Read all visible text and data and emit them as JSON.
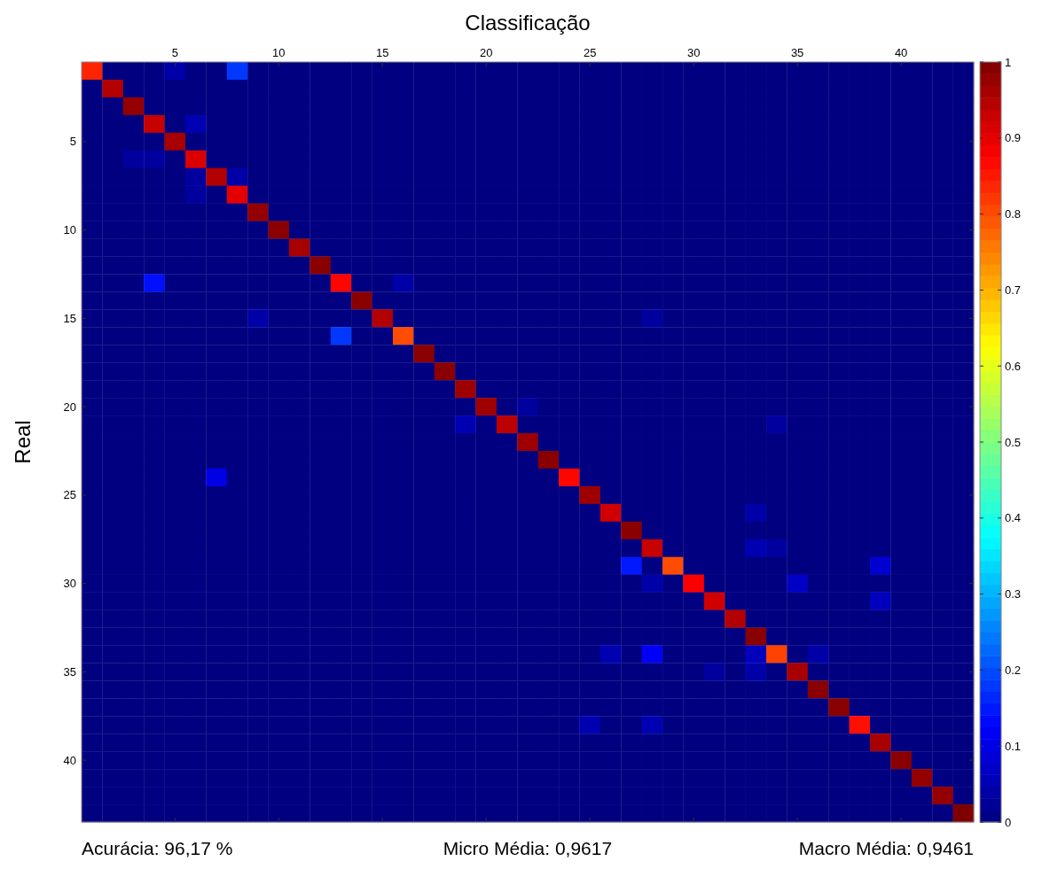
{
  "chart_data": {
    "type": "heatmap",
    "xlabel": "Classificação",
    "ylabel": "Real",
    "categories": [
      null,
      null,
      null,
      null,
      "5",
      null,
      null,
      null,
      null,
      "10",
      null,
      null,
      null,
      null,
      "15",
      null,
      null,
      null,
      null,
      "20",
      null,
      null,
      null,
      null,
      "25",
      null,
      null,
      null,
      null,
      "30",
      null,
      null,
      null,
      null,
      "35",
      null,
      null,
      null,
      null,
      "40",
      null,
      null,
      null
    ],
    "y_categories": [
      null,
      null,
      null,
      null,
      "5",
      null,
      null,
      null,
      null,
      "10",
      null,
      null,
      null,
      null,
      "15",
      null,
      null,
      null,
      null,
      "20",
      null,
      null,
      null,
      null,
      "25",
      null,
      null,
      null,
      null,
      "30",
      null,
      null,
      null,
      null,
      "35",
      null,
      null,
      null,
      null,
      "40",
      null,
      null,
      null
    ],
    "clim": [
      0,
      1
    ],
    "cticks": [
      0,
      0.1,
      0.2,
      0.3,
      0.4,
      0.5,
      0.6,
      0.7,
      0.8,
      0.9,
      1
    ],
    "annotations": [
      "Acurácia: 96,17 %",
      "Micro Média: 0,9617",
      "Macro Média: 0,9461"
    ],
    "cells": [
      [
        0.84,
        0,
        0,
        0,
        0.04,
        0,
        0,
        0.18,
        0,
        0,
        0,
        0,
        0,
        0,
        0,
        0,
        0,
        0,
        0,
        0,
        0,
        0,
        0,
        0,
        0,
        0,
        0,
        0,
        0,
        0,
        0,
        0,
        0,
        0,
        0,
        0,
        0,
        0,
        0,
        0,
        0,
        0,
        0
      ],
      [
        0,
        0.95,
        0,
        0,
        0,
        0,
        0,
        0,
        0,
        0,
        0,
        0,
        0,
        0,
        0,
        0,
        0,
        0,
        0,
        0,
        0,
        0,
        0,
        0,
        0,
        0,
        0,
        0,
        0,
        0,
        0,
        0,
        0,
        0,
        0,
        0,
        0,
        0,
        0,
        0,
        0,
        0,
        0
      ],
      [
        0,
        0,
        0.98,
        0,
        0,
        0,
        0,
        0,
        0,
        0,
        0,
        0,
        0,
        0,
        0,
        0,
        0,
        0,
        0,
        0,
        0,
        0,
        0,
        0,
        0,
        0,
        0,
        0,
        0,
        0,
        0,
        0,
        0,
        0,
        0,
        0,
        0,
        0,
        0,
        0,
        0,
        0,
        0
      ],
      [
        0,
        0,
        0,
        0.93,
        0,
        0.05,
        0,
        0,
        0,
        0,
        0,
        0,
        0,
        0,
        0,
        0,
        0,
        0,
        0,
        0,
        0,
        0,
        0,
        0,
        0,
        0,
        0,
        0,
        0,
        0,
        0,
        0,
        0,
        0,
        0,
        0,
        0,
        0,
        0,
        0,
        0,
        0,
        0
      ],
      [
        0,
        0,
        0,
        0,
        0.96,
        0,
        0,
        0,
        0,
        0,
        0,
        0,
        0,
        0,
        0,
        0,
        0,
        0,
        0,
        0,
        0,
        0,
        0,
        0,
        0,
        0,
        0,
        0,
        0,
        0,
        0,
        0,
        0,
        0,
        0,
        0,
        0,
        0,
        0,
        0,
        0,
        0,
        0
      ],
      [
        0,
        0,
        0.03,
        0.03,
        0,
        0.91,
        0,
        0,
        0,
        0,
        0,
        0,
        0,
        0,
        0,
        0,
        0,
        0,
        0,
        0,
        0,
        0,
        0,
        0,
        0,
        0,
        0,
        0,
        0,
        0,
        0,
        0,
        0,
        0,
        0,
        0,
        0,
        0,
        0,
        0,
        0,
        0,
        0
      ],
      [
        0,
        0,
        0,
        0,
        0,
        0.03,
        0.95,
        0.04,
        0,
        0,
        0,
        0,
        0,
        0,
        0,
        0,
        0,
        0,
        0,
        0,
        0,
        0,
        0,
        0,
        0,
        0,
        0,
        0,
        0,
        0,
        0,
        0,
        0,
        0,
        0,
        0,
        0,
        0,
        0,
        0,
        0,
        0,
        0
      ],
      [
        0,
        0,
        0,
        0,
        0,
        0.03,
        0,
        0.9,
        0,
        0,
        0,
        0,
        0,
        0,
        0,
        0,
        0,
        0,
        0,
        0,
        0,
        0,
        0,
        0,
        0,
        0,
        0,
        0,
        0,
        0,
        0,
        0,
        0,
        0,
        0,
        0,
        0,
        0,
        0,
        0,
        0,
        0,
        0
      ],
      [
        0,
        0,
        0,
        0,
        0,
        0,
        0,
        0,
        0.98,
        0,
        0,
        0,
        0,
        0,
        0,
        0,
        0,
        0,
        0,
        0,
        0,
        0,
        0,
        0,
        0,
        0,
        0,
        0,
        0,
        0,
        0,
        0,
        0,
        0,
        0,
        0,
        0,
        0,
        0,
        0,
        0,
        0,
        0
      ],
      [
        0,
        0,
        0,
        0,
        0,
        0,
        0,
        0,
        0,
        0.99,
        0,
        0,
        0,
        0,
        0,
        0,
        0,
        0,
        0,
        0,
        0,
        0,
        0,
        0,
        0,
        0,
        0,
        0,
        0,
        0,
        0,
        0,
        0,
        0,
        0,
        0,
        0,
        0,
        0,
        0,
        0,
        0,
        0
      ],
      [
        0,
        0,
        0,
        0,
        0,
        0,
        0,
        0,
        0,
        0,
        0.96,
        0,
        0,
        0,
        0,
        0,
        0,
        0,
        0,
        0,
        0,
        0,
        0,
        0,
        0,
        0,
        0,
        0,
        0,
        0,
        0,
        0,
        0,
        0,
        0,
        0,
        0,
        0,
        0,
        0,
        0,
        0,
        0
      ],
      [
        0,
        0,
        0,
        0,
        0,
        0,
        0,
        0,
        0,
        0,
        0,
        0.99,
        0,
        0,
        0,
        0,
        0,
        0,
        0,
        0,
        0,
        0,
        0,
        0,
        0,
        0,
        0,
        0,
        0,
        0,
        0,
        0,
        0,
        0,
        0,
        0,
        0,
        0,
        0,
        0,
        0,
        0,
        0
      ],
      [
        0,
        0,
        0,
        0.14,
        0,
        0,
        0,
        0,
        0,
        0,
        0,
        0,
        0.87,
        0,
        0,
        0.04,
        0,
        0,
        0,
        0,
        0,
        0,
        0,
        0,
        0,
        0,
        0,
        0,
        0,
        0,
        0,
        0,
        0,
        0,
        0,
        0,
        0,
        0,
        0,
        0,
        0,
        0,
        0
      ],
      [
        0,
        0,
        0,
        0,
        0,
        0,
        0,
        0,
        0,
        0,
        0,
        0,
        0,
        0.99,
        0,
        0,
        0,
        0,
        0,
        0,
        0,
        0,
        0,
        0,
        0,
        0,
        0,
        0,
        0,
        0,
        0,
        0,
        0,
        0,
        0,
        0,
        0,
        0,
        0,
        0,
        0,
        0,
        0
      ],
      [
        0,
        0,
        0,
        0,
        0,
        0,
        0,
        0,
        0.04,
        0,
        0,
        0,
        0,
        0,
        0.95,
        0,
        0,
        0,
        0,
        0,
        0,
        0,
        0,
        0,
        0,
        0,
        0,
        0.03,
        0,
        0,
        0,
        0,
        0,
        0,
        0,
        0,
        0,
        0,
        0,
        0,
        0,
        0,
        0
      ],
      [
        0,
        0,
        0,
        0,
        0,
        0,
        0,
        0,
        0,
        0,
        0,
        0,
        0.18,
        0,
        0,
        0.8,
        0,
        0,
        0,
        0,
        0,
        0,
        0,
        0,
        0,
        0,
        0,
        0,
        0,
        0,
        0,
        0,
        0,
        0,
        0,
        0,
        0,
        0,
        0,
        0,
        0,
        0,
        0
      ],
      [
        0,
        0,
        0,
        0,
        0,
        0,
        0,
        0,
        0,
        0,
        0,
        0,
        0,
        0,
        0,
        0,
        0.99,
        0,
        0,
        0,
        0,
        0,
        0,
        0,
        0,
        0,
        0,
        0,
        0,
        0,
        0,
        0,
        0,
        0,
        0,
        0,
        0,
        0,
        0,
        0,
        0,
        0,
        0
      ],
      [
        0,
        0,
        0,
        0,
        0,
        0,
        0,
        0,
        0,
        0,
        0,
        0,
        0,
        0,
        0,
        0,
        0,
        0.99,
        0,
        0,
        0,
        0,
        0,
        0,
        0,
        0,
        0,
        0,
        0,
        0,
        0,
        0,
        0,
        0,
        0,
        0,
        0,
        0,
        0,
        0,
        0,
        0,
        0
      ],
      [
        0,
        0,
        0,
        0,
        0,
        0,
        0,
        0,
        0,
        0,
        0,
        0,
        0,
        0,
        0,
        0,
        0,
        0,
        0.97,
        0,
        0,
        0,
        0,
        0,
        0,
        0,
        0,
        0,
        0,
        0,
        0,
        0,
        0,
        0,
        0,
        0,
        0,
        0,
        0,
        0,
        0,
        0,
        0
      ],
      [
        0,
        0,
        0,
        0,
        0,
        0,
        0,
        0,
        0,
        0,
        0,
        0,
        0,
        0,
        0,
        0,
        0,
        0,
        0,
        0.97,
        0,
        0.03,
        0,
        0,
        0,
        0,
        0,
        0,
        0,
        0,
        0,
        0,
        0,
        0,
        0,
        0,
        0,
        0,
        0,
        0,
        0,
        0,
        0
      ],
      [
        0,
        0,
        0,
        0,
        0,
        0,
        0,
        0,
        0,
        0,
        0,
        0,
        0,
        0,
        0,
        0,
        0,
        0,
        0.05,
        0,
        0.94,
        0,
        0,
        0,
        0,
        0,
        0,
        0,
        0,
        0,
        0,
        0,
        0,
        0.03,
        0,
        0,
        0,
        0,
        0,
        0,
        0,
        0,
        0
      ],
      [
        0,
        0,
        0,
        0,
        0,
        0,
        0,
        0,
        0,
        0,
        0,
        0,
        0,
        0,
        0,
        0,
        0,
        0,
        0,
        0,
        0,
        0.97,
        0,
        0,
        0,
        0,
        0,
        0,
        0,
        0,
        0,
        0,
        0,
        0,
        0,
        0,
        0,
        0,
        0,
        0,
        0,
        0,
        0
      ],
      [
        0,
        0,
        0,
        0,
        0,
        0,
        0,
        0,
        0,
        0,
        0,
        0,
        0,
        0,
        0,
        0,
        0,
        0,
        0,
        0,
        0,
        0,
        0.99,
        0,
        0,
        0,
        0,
        0,
        0,
        0,
        0,
        0,
        0,
        0,
        0,
        0,
        0,
        0,
        0,
        0,
        0,
        0,
        0
      ],
      [
        0,
        0,
        0,
        0,
        0,
        0,
        0.1,
        0,
        0,
        0,
        0,
        0,
        0,
        0,
        0,
        0,
        0,
        0,
        0,
        0,
        0,
        0,
        0,
        0.87,
        0,
        0,
        0,
        0,
        0,
        0,
        0,
        0,
        0,
        0,
        0,
        0,
        0,
        0,
        0,
        0,
        0,
        0,
        0
      ],
      [
        0,
        0,
        0,
        0,
        0,
        0,
        0,
        0,
        0,
        0,
        0,
        0,
        0,
        0,
        0,
        0,
        0,
        0,
        0,
        0,
        0,
        0,
        0,
        0,
        0.97,
        0,
        0,
        0,
        0,
        0,
        0,
        0,
        0,
        0,
        0,
        0,
        0,
        0,
        0,
        0,
        0,
        0,
        0
      ],
      [
        0,
        0,
        0,
        0,
        0,
        0,
        0,
        0,
        0,
        0,
        0,
        0,
        0,
        0,
        0,
        0,
        0,
        0,
        0,
        0,
        0,
        0,
        0,
        0,
        0,
        0.92,
        0,
        0,
        0,
        0,
        0,
        0,
        0.04,
        0,
        0,
        0,
        0,
        0,
        0,
        0,
        0,
        0,
        0
      ],
      [
        0,
        0,
        0,
        0,
        0,
        0,
        0,
        0,
        0,
        0,
        0,
        0,
        0,
        0,
        0,
        0,
        0,
        0,
        0,
        0,
        0,
        0,
        0,
        0,
        0,
        0,
        0.99,
        0,
        0,
        0,
        0,
        0,
        0,
        0,
        0,
        0,
        0,
        0,
        0,
        0,
        0,
        0,
        0
      ],
      [
        0,
        0,
        0,
        0,
        0,
        0,
        0,
        0,
        0,
        0,
        0,
        0,
        0,
        0,
        0,
        0,
        0,
        0,
        0,
        0,
        0,
        0,
        0,
        0,
        0,
        0,
        0,
        0.93,
        0,
        0,
        0,
        0,
        0.05,
        0.03,
        0,
        0,
        0,
        0,
        0,
        0,
        0,
        0,
        0
      ],
      [
        0,
        0,
        0,
        0,
        0,
        0,
        0,
        0,
        0,
        0,
        0,
        0,
        0,
        0,
        0,
        0,
        0,
        0,
        0,
        0,
        0,
        0,
        0,
        0,
        0,
        0,
        0.15,
        0,
        0.8,
        0,
        0,
        0,
        0,
        0,
        0,
        0,
        0,
        0,
        0.08,
        0,
        0,
        0,
        0
      ],
      [
        0,
        0,
        0,
        0,
        0,
        0,
        0,
        0,
        0,
        0,
        0,
        0,
        0,
        0,
        0,
        0,
        0,
        0,
        0,
        0,
        0,
        0,
        0,
        0,
        0,
        0,
        0,
        0.04,
        0,
        0.88,
        0,
        0,
        0,
        0,
        0.07,
        0,
        0,
        0,
        0,
        0,
        0,
        0,
        0
      ],
      [
        0,
        0,
        0,
        0,
        0,
        0,
        0,
        0,
        0,
        0,
        0,
        0,
        0,
        0,
        0,
        0,
        0,
        0,
        0,
        0,
        0,
        0,
        0,
        0,
        0,
        0,
        0,
        0,
        0,
        0,
        0.92,
        0,
        0,
        0,
        0,
        0,
        0,
        0,
        0.06,
        0,
        0,
        0,
        0
      ],
      [
        0,
        0,
        0,
        0,
        0,
        0,
        0,
        0,
        0,
        0,
        0,
        0,
        0,
        0,
        0,
        0,
        0,
        0,
        0,
        0,
        0,
        0,
        0,
        0,
        0,
        0,
        0,
        0,
        0,
        0,
        0,
        0.95,
        0,
        0,
        0,
        0,
        0,
        0,
        0,
        0,
        0,
        0,
        0
      ],
      [
        0,
        0,
        0,
        0,
        0,
        0,
        0,
        0,
        0,
        0,
        0,
        0,
        0,
        0,
        0,
        0,
        0,
        0,
        0,
        0,
        0,
        0,
        0,
        0,
        0,
        0,
        0,
        0,
        0,
        0,
        0,
        0,
        0.99,
        0,
        0,
        0,
        0,
        0,
        0,
        0,
        0,
        0,
        0
      ],
      [
        0,
        0,
        0,
        0,
        0,
        0,
        0,
        0,
        0,
        0,
        0,
        0,
        0,
        0,
        0,
        0,
        0,
        0,
        0,
        0,
        0,
        0,
        0,
        0,
        0,
        0.05,
        0,
        0.12,
        0,
        0,
        0,
        0,
        0.06,
        0.81,
        0,
        0.04,
        0,
        0,
        0,
        0,
        0,
        0,
        0
      ],
      [
        0,
        0,
        0,
        0,
        0,
        0,
        0,
        0,
        0,
        0,
        0,
        0,
        0,
        0,
        0,
        0,
        0,
        0,
        0,
        0,
        0,
        0,
        0,
        0,
        0,
        0,
        0,
        0,
        0,
        0,
        0.03,
        0,
        0.04,
        0,
        0.96,
        0,
        0,
        0,
        0,
        0,
        0,
        0,
        0
      ],
      [
        0,
        0,
        0,
        0,
        0,
        0,
        0,
        0,
        0,
        0,
        0,
        0,
        0,
        0,
        0,
        0,
        0,
        0,
        0,
        0,
        0,
        0,
        0,
        0,
        0,
        0,
        0,
        0,
        0,
        0,
        0,
        0,
        0,
        0,
        0,
        0.99,
        0,
        0,
        0,
        0,
        0,
        0,
        0
      ],
      [
        0,
        0,
        0,
        0,
        0,
        0,
        0,
        0,
        0,
        0,
        0,
        0,
        0,
        0,
        0,
        0,
        0,
        0,
        0,
        0,
        0,
        0,
        0,
        0,
        0,
        0,
        0,
        0,
        0,
        0,
        0,
        0,
        0,
        0,
        0,
        0,
        0.99,
        0,
        0,
        0,
        0,
        0,
        0
      ],
      [
        0,
        0,
        0,
        0,
        0,
        0,
        0,
        0,
        0,
        0,
        0,
        0,
        0,
        0,
        0,
        0,
        0,
        0,
        0,
        0,
        0,
        0,
        0,
        0,
        0.05,
        0,
        0,
        0.05,
        0,
        0,
        0,
        0,
        0,
        0,
        0,
        0,
        0,
        0.86,
        0,
        0,
        0,
        0,
        0
      ],
      [
        0,
        0,
        0,
        0,
        0,
        0,
        0,
        0,
        0,
        0,
        0,
        0,
        0,
        0,
        0,
        0,
        0,
        0,
        0,
        0,
        0,
        0,
        0,
        0,
        0,
        0,
        0,
        0,
        0,
        0,
        0,
        0,
        0,
        0,
        0,
        0,
        0,
        0,
        0.96,
        0,
        0,
        0,
        0
      ],
      [
        0,
        0,
        0,
        0,
        0,
        0,
        0,
        0,
        0,
        0,
        0,
        0,
        0,
        0,
        0,
        0,
        0,
        0,
        0,
        0,
        0,
        0,
        0,
        0,
        0,
        0,
        0,
        0,
        0,
        0,
        0,
        0,
        0,
        0,
        0,
        0,
        0,
        0,
        0,
        0.99,
        0,
        0,
        0
      ],
      [
        0,
        0,
        0,
        0,
        0,
        0,
        0,
        0,
        0,
        0,
        0,
        0,
        0,
        0,
        0,
        0,
        0,
        0,
        0,
        0,
        0,
        0,
        0,
        0,
        0,
        0,
        0,
        0,
        0,
        0,
        0,
        0,
        0,
        0,
        0,
        0,
        0,
        0,
        0,
        0,
        0.98,
        0,
        0
      ],
      [
        0,
        0,
        0,
        0,
        0,
        0,
        0,
        0,
        0,
        0,
        0,
        0,
        0,
        0,
        0,
        0,
        0,
        0,
        0,
        0,
        0,
        0,
        0,
        0,
        0,
        0,
        0,
        0,
        0,
        0,
        0,
        0,
        0,
        0,
        0,
        0,
        0,
        0,
        0,
        0,
        0,
        0.98,
        0
      ],
      [
        0,
        0,
        0,
        0,
        0,
        0,
        0,
        0,
        0,
        0,
        0,
        0,
        0,
        0,
        0,
        0,
        0,
        0,
        0,
        0,
        0,
        0,
        0,
        0,
        0,
        0,
        0,
        0,
        0,
        0,
        0,
        0,
        0,
        0,
        0,
        0,
        0,
        0,
        0,
        0,
        0,
        0,
        1
      ]
    ]
  }
}
